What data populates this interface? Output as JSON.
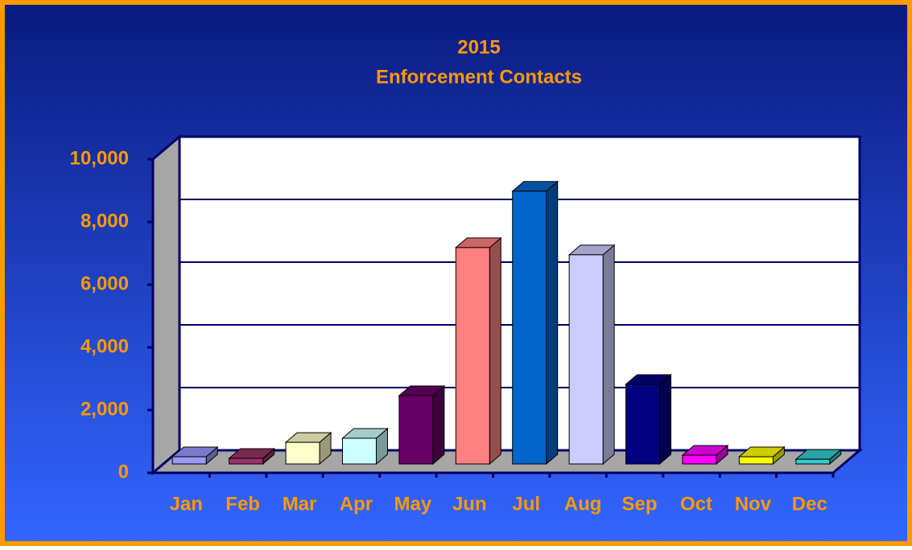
{
  "chart_data": {
    "type": "bar3d",
    "title": "2015",
    "subtitle": "Enforcement Contacts",
    "categories": [
      "Jan",
      "Feb",
      "Mar",
      "Apr",
      "May",
      "Jun",
      "Jul",
      "Aug",
      "Sep",
      "Oct",
      "Nov",
      "Dec"
    ],
    "values": [
      230,
      180,
      690,
      820,
      2180,
      6900,
      8700,
      6670,
      2540,
      280,
      230,
      150
    ],
    "colors": [
      "#9999ff",
      "#993366",
      "#ffffcc",
      "#ccffff",
      "#660066",
      "#ff8080",
      "#0066cc",
      "#ccccff",
      "#000080",
      "#ff00ff",
      "#ffff00",
      "#33cccc"
    ],
    "ylim": [
      0,
      10000
    ],
    "yticks": [
      0,
      {
        "value": 2000,
        "label": "2,000"
      },
      {
        "value": 4000,
        "label": "4,000"
      },
      {
        "value": 6000,
        "label": "6,000"
      },
      {
        "value": 8000,
        "label": "8,000"
      },
      {
        "value": 10000,
        "label": "10,000"
      }
    ],
    "grid": true
  }
}
